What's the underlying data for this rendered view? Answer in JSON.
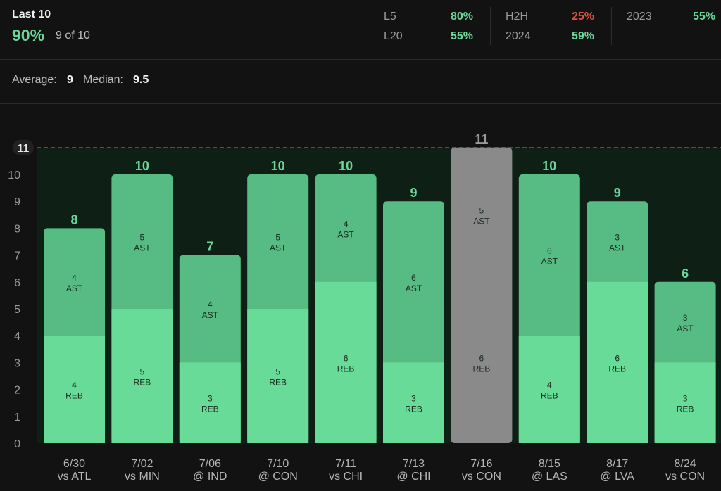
{
  "header": {
    "title": "Last 10",
    "percent": "90%",
    "count": "9 of 10",
    "stats": [
      {
        "label": "L5",
        "value": "80%",
        "color": "#6bd89a"
      },
      {
        "label": "L20",
        "value": "55%",
        "color": "#6bd89a"
      },
      {
        "label": "H2H",
        "value": "25%",
        "color": "#e0513f"
      },
      {
        "label": "2024",
        "value": "59%",
        "color": "#6bd89a"
      },
      {
        "label": "2023",
        "value": "55%",
        "color": "#6bd89a"
      }
    ]
  },
  "summary": {
    "average_label": "Average:",
    "average_value": "9",
    "median_label": "Median:",
    "median_value": "9.5"
  },
  "chart_data": {
    "type": "bar",
    "stacked": true,
    "line_value": 11,
    "line_label": "11",
    "ylim": [
      0,
      11
    ],
    "yticks": [
      0,
      1,
      2,
      3,
      4,
      5,
      6,
      7,
      8,
      9,
      10
    ],
    "categories": [
      {
        "date": "6/30",
        "opp": "vs ATL"
      },
      {
        "date": "7/02",
        "opp": "vs MIN"
      },
      {
        "date": "7/06",
        "opp": "@ IND"
      },
      {
        "date": "7/10",
        "opp": "@ CON"
      },
      {
        "date": "7/11",
        "opp": "vs CHI"
      },
      {
        "date": "7/13",
        "opp": "@ CHI"
      },
      {
        "date": "7/16",
        "opp": "vs CON"
      },
      {
        "date": "8/15",
        "opp": "@ LAS"
      },
      {
        "date": "8/17",
        "opp": "@ LVA"
      },
      {
        "date": "8/24",
        "opp": "vs CON"
      }
    ],
    "series": [
      {
        "name": "REB",
        "values": [
          4,
          5,
          3,
          5,
          6,
          3,
          6,
          4,
          6,
          3
        ]
      },
      {
        "name": "AST",
        "values": [
          4,
          5,
          4,
          5,
          4,
          6,
          5,
          6,
          3,
          3
        ]
      }
    ],
    "totals": [
      8,
      10,
      7,
      10,
      10,
      9,
      11,
      10,
      9,
      6
    ],
    "highlight_index": 6,
    "colors": {
      "reb": "#69db98",
      "ast": "#57bb84",
      "highlight": "#8a8a8a",
      "total_label": "#6bd89a",
      "highlight_label": "#9a9a9a",
      "zone": "#13291c",
      "plot_bg": "#0e1f15"
    }
  }
}
